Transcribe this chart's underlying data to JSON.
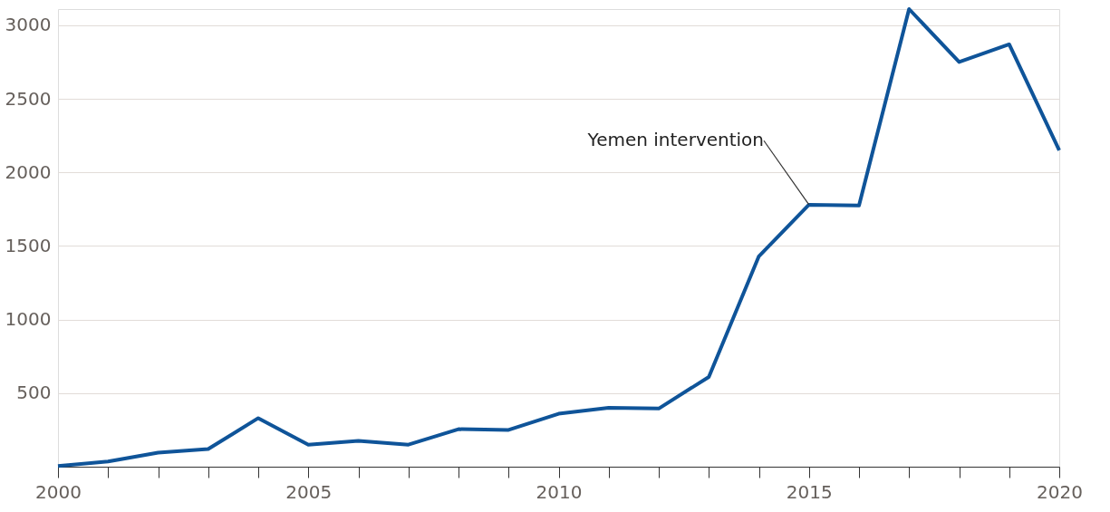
{
  "chart_data": {
    "type": "line",
    "x": [
      2000,
      2001,
      2002,
      2003,
      2004,
      2005,
      2006,
      2007,
      2008,
      2009,
      2010,
      2011,
      2012,
      2013,
      2014,
      2015,
      2016,
      2017,
      2018,
      2019,
      2020
    ],
    "series": [
      {
        "color": "#0f5499",
        "values": [
          5,
          35,
          95,
          120,
          330,
          150,
          175,
          150,
          255,
          250,
          360,
          400,
          395,
          610,
          1430,
          1780,
          1775,
          3110,
          2750,
          2870,
          2150
        ]
      }
    ],
    "xlim": [
      2000,
      2020
    ],
    "xticks": [
      2000,
      {
        "value": 2001,
        "label": null
      },
      {
        "value": 2002,
        "label": null
      },
      {
        "value": 2003,
        "label": null
      },
      {
        "value": 2004,
        "label": null
      },
      2005,
      {
        "value": 2006,
        "label": null
      },
      {
        "value": 2007,
        "label": null
      },
      {
        "value": 2008,
        "label": null
      },
      {
        "value": 2009,
        "label": null
      },
      2010,
      {
        "value": 2011,
        "label": null
      },
      {
        "value": 2012,
        "label": null
      },
      {
        "value": 2013,
        "label": null
      },
      {
        "value": 2014,
        "label": null
      },
      2015,
      {
        "value": 2016,
        "label": null
      },
      {
        "value": 2017,
        "label": null
      },
      {
        "value": 2018,
        "label": null
      },
      {
        "value": 2019,
        "label": null
      },
      2020
    ],
    "ylim": [
      0,
      3110
    ],
    "yticks": [
      500,
      1000,
      1500,
      2000,
      2500,
      3000
    ],
    "grid": "y",
    "marker": "none",
    "line_style": "solid",
    "annotations": [
      {
        "text": "Yemen intervention",
        "x": 2015,
        "y": 1780
      }
    ]
  }
}
